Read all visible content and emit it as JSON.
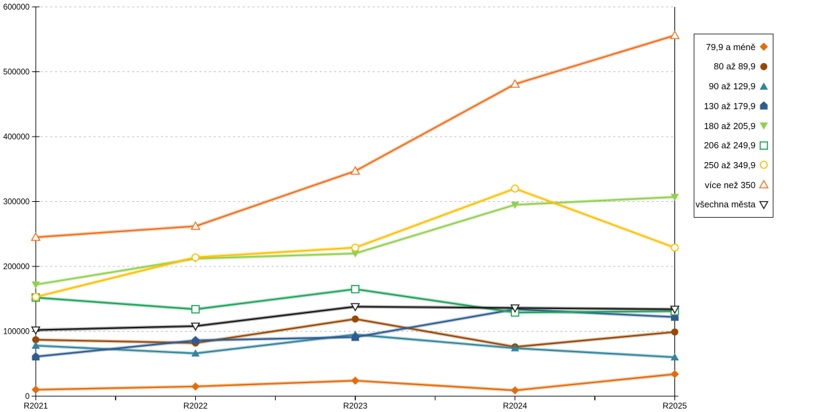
{
  "chart_data": {
    "type": "line",
    "title": "",
    "categories": [
      "R2021",
      "R2022",
      "R2023",
      "R2024",
      "R2025"
    ],
    "xlabel": "",
    "ylabel": "",
    "ylim": [
      0,
      600000
    ],
    "ytick_step": 100000,
    "y_tick_labels": [
      "0",
      "100000",
      "200000",
      "300000",
      "400000",
      "500000",
      "600000"
    ],
    "grid": "horizontal-dashed",
    "legend_position": "right",
    "series": [
      {
        "name": "79,9 a méně",
        "color": "#E46C0A",
        "marker": "diamond",
        "values": [
          10000,
          15000,
          24000,
          9000,
          34000
        ]
      },
      {
        "name": "80 až 89,9",
        "color": "#974806",
        "marker": "circle",
        "values": [
          87000,
          82000,
          119000,
          76000,
          99000
        ]
      },
      {
        "name": "90 až 129,9",
        "color": "#31859C",
        "marker": "triangle-up",
        "values": [
          78000,
          66000,
          95000,
          74000,
          60000
        ]
      },
      {
        "name": "130 až 179,9",
        "color": "#2E5C8F",
        "marker": "pentagon",
        "values": [
          61000,
          86000,
          91000,
          134000,
          122000
        ]
      },
      {
        "name": "180 až 205,9",
        "color": "#92D050",
        "marker": "triangle-down",
        "values": [
          172000,
          212000,
          220000,
          295000,
          307000
        ]
      },
      {
        "name": "206 až 249,9",
        "color": "#1FA35C",
        "marker": "square-open",
        "values": [
          152000,
          134000,
          165000,
          129000,
          131000
        ]
      },
      {
        "name": "250 až 349,9",
        "color": "#FFC000",
        "marker": "circle-open",
        "values": [
          153000,
          214000,
          229000,
          320000,
          229000
        ]
      },
      {
        "name": "více než 350",
        "color": "#F2701D",
        "marker": "triangle-up-open",
        "values": [
          245000,
          262000,
          347000,
          481000,
          556000
        ]
      },
      {
        "name": "všechna města",
        "color": "#1A1A1A",
        "marker": "triangle-down-open",
        "values": [
          102000,
          108000,
          138000,
          136000,
          134000
        ]
      }
    ],
    "colors": {
      "axis": "#000000",
      "gridline": "#BFBFBF",
      "background": "#FFFFFF"
    }
  }
}
